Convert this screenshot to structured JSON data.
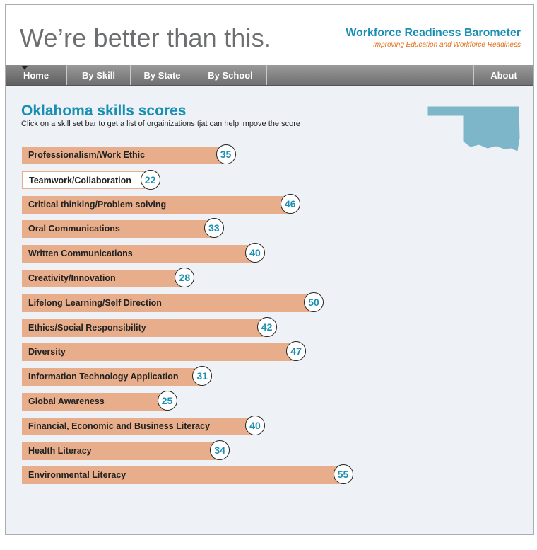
{
  "header": {
    "tagline": "We’re better than this.",
    "brand_title": "Workforce Readiness Barometer",
    "brand_subtitle": "Improving Education and Workforce Readiness"
  },
  "nav": {
    "home": "Home",
    "by_skill": "By Skill",
    "by_state": "By State",
    "by_school": "By School",
    "about": "About"
  },
  "main": {
    "title": "Oklahoma skills scores",
    "instructions": "Click on a skill set bar to get a list of orgainizations tjat can help impove the score"
  },
  "colors": {
    "accent": "#1a8fb3",
    "bar": "#e8ae8b",
    "brand_subtitle": "#e0701d",
    "map": "#7db6c9"
  },
  "skills": [
    {
      "label": "Professionalism/Work Ethic",
      "score": 35
    },
    {
      "label": "Teamwork/Collaboration",
      "score": 22
    },
    {
      "label": "Critical thinking/Problem solving",
      "score": 46
    },
    {
      "label": "Oral Communications",
      "score": 33
    },
    {
      "label": "Written Communications",
      "score": 40
    },
    {
      "label": "Creativity/Innovation",
      "score": 28
    },
    {
      "label": "Lifelong Learning/Self Direction",
      "score": 50
    },
    {
      "label": "Ethics/Social Responsibility",
      "score": 42
    },
    {
      "label": "Diversity",
      "score": 47
    },
    {
      "label": "Information Technology Application",
      "score": 31
    },
    {
      "label": "Global Awareness",
      "score": 25
    },
    {
      "label": "Financial, Economic and Business Literacy",
      "score": 40
    },
    {
      "label": "Health Literacy",
      "score": 34
    },
    {
      "label": "Environmental Literacy",
      "score": 55
    }
  ]
}
